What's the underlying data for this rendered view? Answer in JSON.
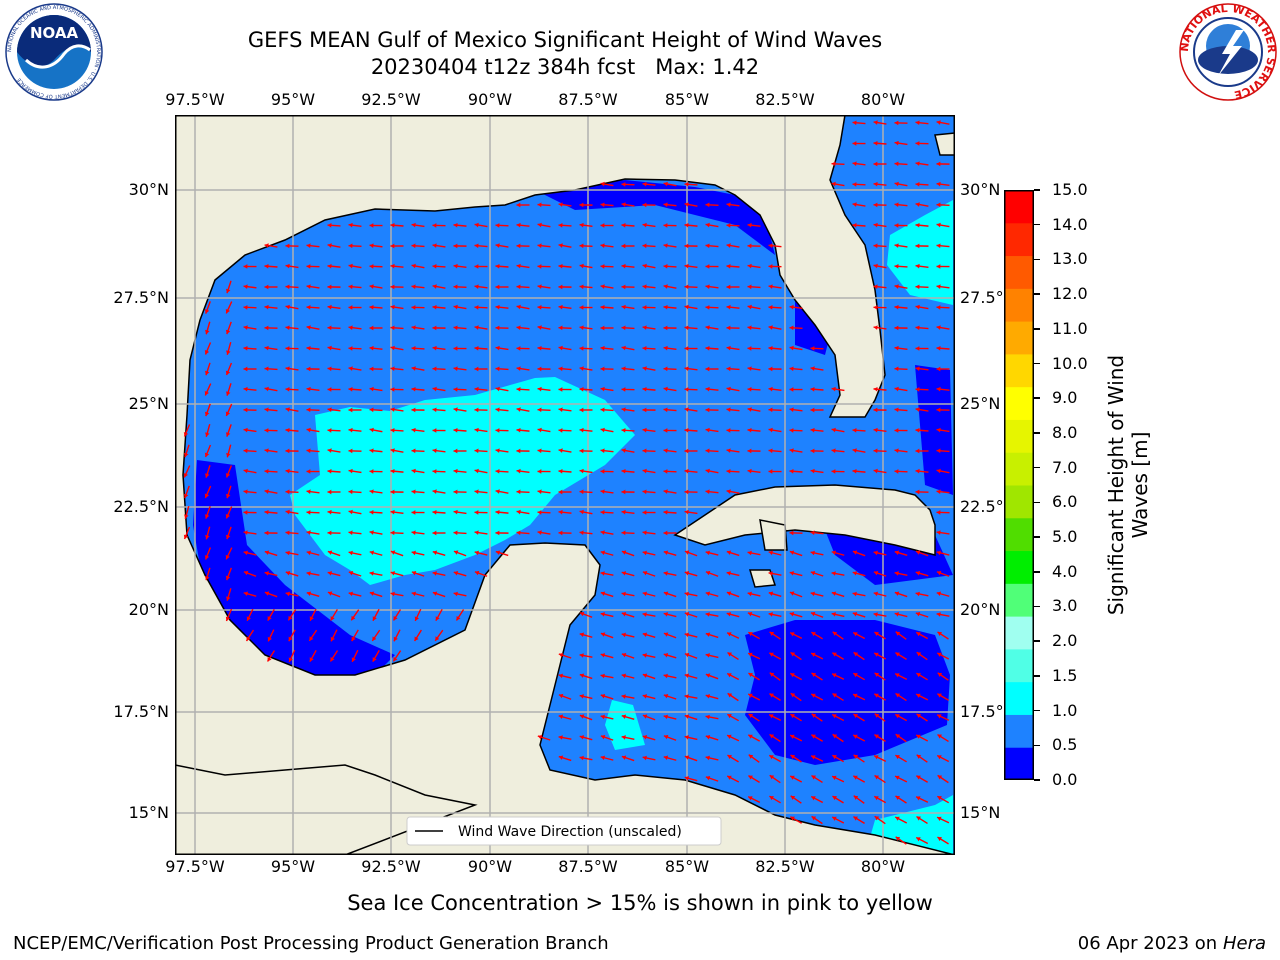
{
  "header": {
    "title_line1": "GEFS MEAN Gulf of Mexico Significant Height of Wind Waves",
    "title_line2": "20230404 t12z 384h fcst   Max: 1.42"
  },
  "logos": {
    "noaa_text": "NOAA",
    "noaa_ring": "NATIONAL OCEANIC AND ATMOSPHERIC ADMINISTRATION · U.S. DEPARTMENT OF COMMERCE",
    "nws_ring": "NATIONAL WEATHER SERVICE"
  },
  "map": {
    "lon_labels": [
      "97.5°W",
      "95°W",
      "92.5°W",
      "90°W",
      "87.5°W",
      "85°W",
      "82.5°W",
      "80°W"
    ],
    "lat_labels": [
      "30°N",
      "27.5°N",
      "25°N",
      "22.5°N",
      "20°N",
      "17.5°N",
      "15°N"
    ],
    "legend_label": "Wind Wave Direction (unscaled)",
    "colors": {
      "land": "#efeedd",
      "coast": "#000000",
      "grid": "#b0b0b0",
      "arrow": "#ff0000",
      "ocean_0_05": "#0000ff",
      "ocean_05_10": "#1e82ff",
      "ocean_10_15": "#00ffff"
    }
  },
  "colorbar": {
    "label": "Significant Height of Wind Waves [m]",
    "ticks": [
      "0.0",
      "0.5",
      "1.0",
      "1.5",
      "2.0",
      "3.0",
      "4.0",
      "5.0",
      "6.0",
      "7.0",
      "8.0",
      "9.0",
      "10.0",
      "11.0",
      "12.0",
      "13.0",
      "14.0",
      "15.0"
    ],
    "colors": [
      "#0000ff",
      "#1e82ff",
      "#00ffff",
      "#50ffe6",
      "#a0fff0",
      "#50ff78",
      "#00ee00",
      "#50dd00",
      "#a0e600",
      "#c8f000",
      "#e6f500",
      "#ffff00",
      "#ffd700",
      "#ffaa00",
      "#ff8200",
      "#ff5a00",
      "#ff2800",
      "#ff0000"
    ]
  },
  "notes": {
    "sea_ice": "Sea Ice Concentration > 15% is shown in pink to yellow"
  },
  "footer": {
    "left": "NCEP/EMC/Verification Post Processing Product Generation Branch",
    "date": "06 Apr 2023 on ",
    "host": "Hera"
  }
}
